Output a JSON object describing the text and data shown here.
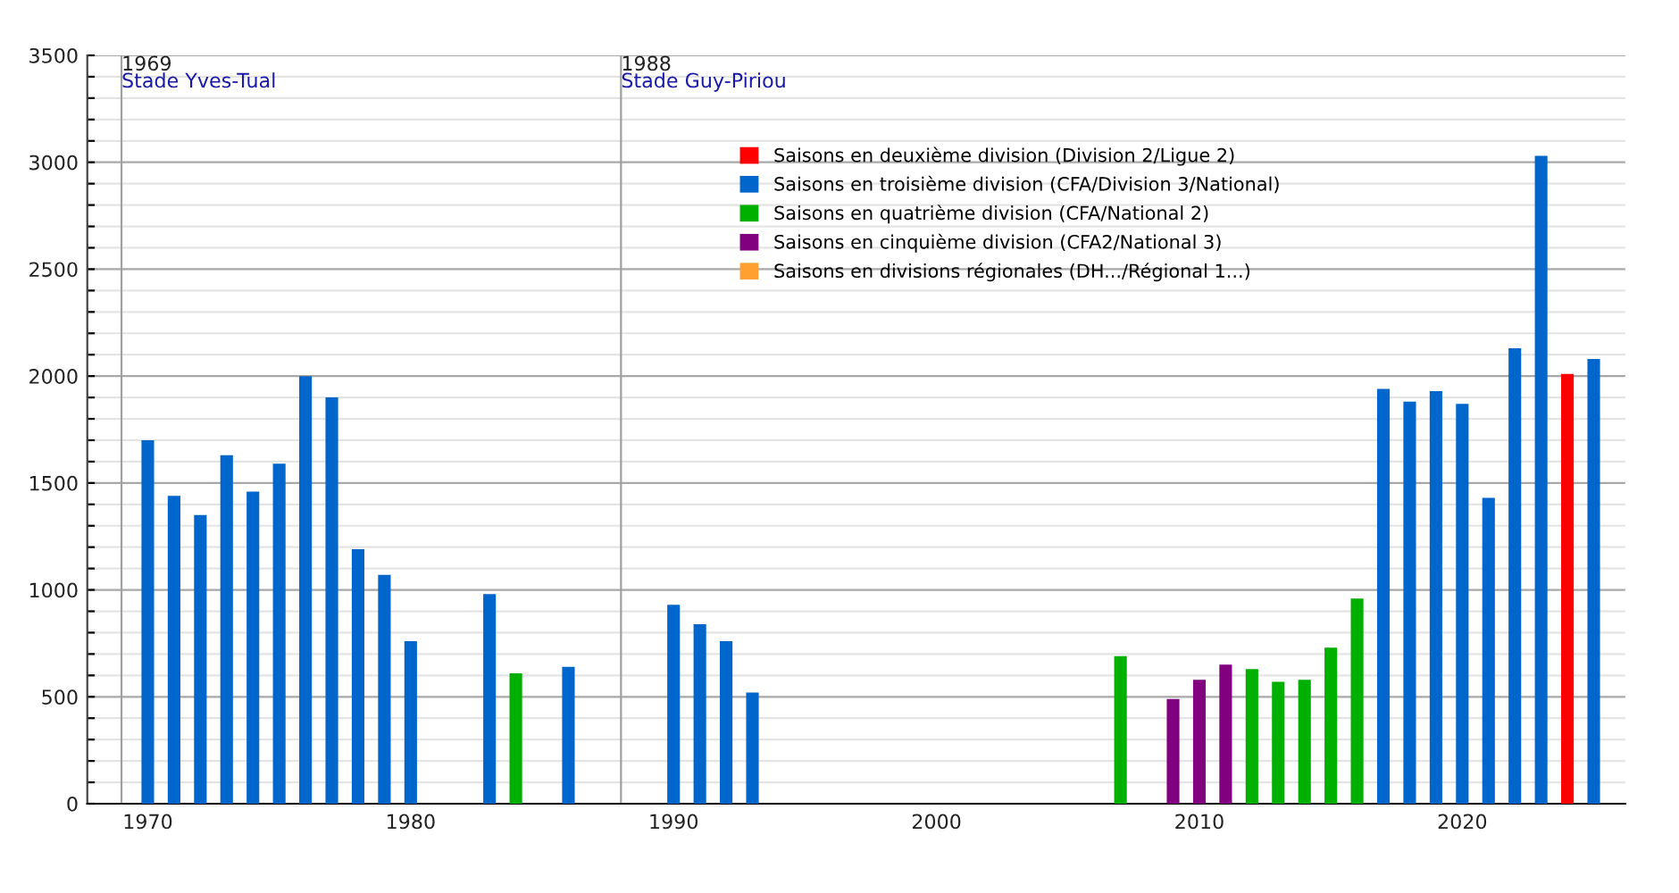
{
  "chart_data": {
    "type": "bar",
    "series": [
      {
        "name": "Saisons en deuxième division (Division 2/Ligue 2)",
        "color": "#ff0000",
        "x": [
          2024
        ],
        "values": [
          2010
        ]
      },
      {
        "name": "Saisons en troisième division (CFA/Division 3/National)",
        "color": "#0066cc",
        "x": [
          1970,
          1971,
          1972,
          1973,
          1974,
          1975,
          1976,
          1977,
          1978,
          1979,
          1980,
          1983,
          1986,
          1990,
          1991,
          1992,
          1993,
          2017,
          2018,
          2019,
          2020,
          2021,
          2022,
          2023,
          2025
        ],
        "values": [
          1700,
          1440,
          1350,
          1630,
          1460,
          1590,
          2000,
          1900,
          1190,
          1070,
          760,
          980,
          640,
          930,
          840,
          760,
          520,
          1940,
          1880,
          1930,
          1870,
          1430,
          2130,
          3030,
          2080
        ]
      },
      {
        "name": "Saisons en quatrième division (CFA/National 2)",
        "color": "#00b000",
        "x": [
          1984,
          2007,
          2012,
          2013,
          2014,
          2015,
          2016
        ],
        "values": [
          610,
          690,
          630,
          570,
          580,
          730,
          960
        ]
      },
      {
        "name": "Saisons en cinquième division (CFA2/National 3)",
        "color": "#800080",
        "x": [
          2009,
          2010,
          2011
        ],
        "values": [
          490,
          580,
          650
        ]
      },
      {
        "name": "Saisons en divisions régionales (DH.../Régional 1...)",
        "color": "#ffa030"
      }
    ],
    "xlim": [
      1967.7,
      2026.2
    ],
    "xticks": [
      1970,
      1980,
      1990,
      2000,
      2010,
      2020
    ],
    "ylim": [
      0,
      3500
    ],
    "yticks": [
      0,
      {
        "value": 100,
        "label": null
      },
      {
        "value": 200,
        "label": null
      },
      {
        "value": 300,
        "label": null
      },
      {
        "value": 400,
        "label": null
      },
      500,
      {
        "value": 600,
        "label": null
      },
      {
        "value": 700,
        "label": null
      },
      {
        "value": 800,
        "label": null
      },
      {
        "value": 900,
        "label": null
      },
      1000,
      {
        "value": 1100,
        "label": null
      },
      {
        "value": 1200,
        "label": null
      },
      {
        "value": 1300,
        "label": null
      },
      {
        "value": 1400,
        "label": null
      },
      1500,
      {
        "value": 1600,
        "label": null
      },
      {
        "value": 1700,
        "label": null
      },
      {
        "value": 1800,
        "label": null
      },
      {
        "value": 1900,
        "label": null
      },
      2000,
      {
        "value": 2100,
        "label": null
      },
      {
        "value": 2200,
        "label": null
      },
      {
        "value": 2300,
        "label": null
      },
      {
        "value": 2400,
        "label": null
      },
      2500,
      {
        "value": 2600,
        "label": null
      },
      {
        "value": 2700,
        "label": null
      },
      {
        "value": 2800,
        "label": null
      },
      {
        "value": 2900,
        "label": null
      },
      3000,
      {
        "value": 3100,
        "label": null
      },
      {
        "value": 3200,
        "label": null
      },
      {
        "value": 3300,
        "label": null
      },
      {
        "value": 3400,
        "label": null
      },
      3500
    ],
    "grid": "y",
    "legend": "top",
    "ref_lines": [
      {
        "axis": "x",
        "value": 1969,
        "label": "1969",
        "color": "#a0a0a0"
      },
      {
        "axis": "x",
        "value": 1988,
        "label": "1988",
        "color": "#a0a0a0"
      }
    ],
    "annotations": [
      {
        "text": "Stade Yves-Tual",
        "x": 1969,
        "y": 3420
      },
      {
        "text": "Stade Guy-Piriou",
        "x": 1988,
        "y": 3420
      }
    ]
  }
}
